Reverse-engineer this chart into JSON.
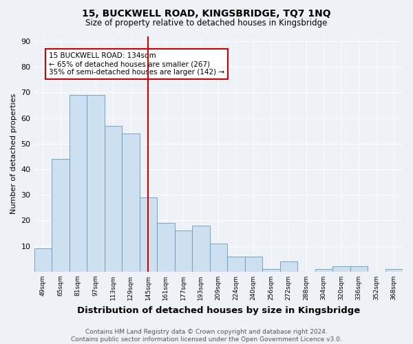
{
  "title": "15, BUCKWELL ROAD, KINGSBRIDGE, TQ7 1NQ",
  "subtitle": "Size of property relative to detached houses in Kingsbridge",
  "xlabel": "Distribution of detached houses by size in Kingsbridge",
  "ylabel": "Number of detached properties",
  "categories": [
    "49sqm",
    "65sqm",
    "81sqm",
    "97sqm",
    "113sqm",
    "129sqm",
    "145sqm",
    "161sqm",
    "177sqm",
    "193sqm",
    "209sqm",
    "224sqm",
    "240sqm",
    "256sqm",
    "272sqm",
    "288sqm",
    "304sqm",
    "320sqm",
    "336sqm",
    "352sqm",
    "368sqm"
  ],
  "values": [
    9,
    44,
    69,
    69,
    57,
    54,
    29,
    19,
    16,
    18,
    11,
    6,
    6,
    1,
    4,
    0,
    1,
    2,
    2,
    0,
    1
  ],
  "bar_color": "#cce0f0",
  "bar_edge_color": "#6699bb",
  "vline_x_index": 6.0,
  "vline_color": "#cc0000",
  "annotation_text": "15 BUCKWELL ROAD: 134sqm\n← 65% of detached houses are smaller (267)\n35% of semi-detached houses are larger (142) →",
  "annotation_box_color": "#ffffff",
  "annotation_box_edge_color": "#cc0000",
  "ylim": [
    0,
    92
  ],
  "yticks": [
    0,
    10,
    20,
    30,
    40,
    50,
    60,
    70,
    80,
    90
  ],
  "footer": "Contains HM Land Registry data © Crown copyright and database right 2024.\nContains public sector information licensed under the Open Government Licence v3.0.",
  "bg_color": "#eef2f7",
  "plot_bg_color": "#eef2f7",
  "grid_color": "#ffffff",
  "title_fontsize": 10,
  "subtitle_fontsize": 8.5,
  "xlabel_fontsize": 9.5,
  "ylabel_fontsize": 8,
  "footer_fontsize": 6.5,
  "ann_fontsize": 7.5
}
